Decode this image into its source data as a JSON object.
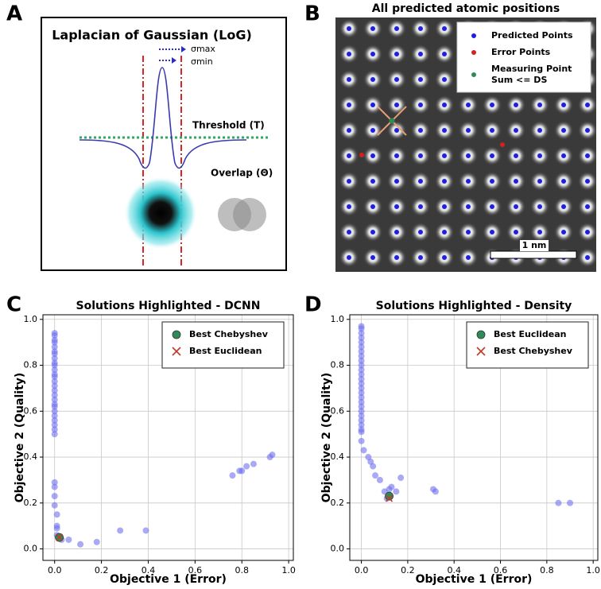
{
  "panels": {
    "a": {
      "letter": "A",
      "title": "Laplacian of Gaussian (LoG)",
      "sigma_max": "σmax",
      "sigma_min": "σmin",
      "threshold": "Threshold (T)",
      "overlap": "Overlap (Θ)"
    },
    "b": {
      "letter": "B",
      "title": "All predicted atomic positions",
      "scale_bar": "1 nm",
      "legend": [
        {
          "lines": [
            "Predicted Points"
          ],
          "color": "#1f1fe0"
        },
        {
          "lines": [
            "Error Points"
          ],
          "color": "#d62020"
        },
        {
          "lines": [
            "Measuring Point",
            "Sum <= DS"
          ],
          "color": "#2e8b57"
        }
      ]
    },
    "c": {
      "letter": "C"
    },
    "d": {
      "letter": "D"
    }
  },
  "chart_data": [
    {
      "type": "scatter",
      "title": "Solutions Highlighted - DCNN",
      "x_label": "Objective 1 (Error)",
      "y_label": "Objective 2 (Quality)",
      "xlim": [
        -0.05,
        1.02
      ],
      "ylim": [
        -0.05,
        1.02
      ],
      "xticks": [
        {
          "value": 0,
          "label": "0.0"
        },
        0.2,
        0.4,
        0.6,
        0.8,
        {
          "value": 1,
          "label": "1.0"
        }
      ],
      "yticks": [
        {
          "value": 0,
          "label": "0.0"
        },
        0.2,
        0.4,
        0.6,
        0.8,
        {
          "value": 1,
          "label": "1.0"
        }
      ],
      "grid": true,
      "legend": "upper right",
      "color": "#6f6ff0",
      "x": [
        0,
        0,
        0,
        0,
        0,
        0,
        0,
        0,
        0,
        0,
        0,
        0,
        0,
        0,
        0,
        0,
        0,
        0,
        0,
        0,
        0,
        0,
        0,
        0,
        0,
        0,
        0,
        0,
        0,
        0,
        0.01,
        0.01,
        0.01,
        0.01,
        0.02,
        0.03,
        0.06,
        0.11,
        0.18,
        0.28,
        0.39,
        0.76,
        0.79,
        0.8,
        0.82,
        0.85,
        0.92,
        0.93
      ],
      "y": [
        0.94,
        0.93,
        0.91,
        0.9,
        0.88,
        0.86,
        0.85,
        0.83,
        0.81,
        0.8,
        0.78,
        0.76,
        0.75,
        0.73,
        0.71,
        0.69,
        0.67,
        0.65,
        0.63,
        0.62,
        0.6,
        0.58,
        0.56,
        0.54,
        0.52,
        0.5,
        0.29,
        0.27,
        0.23,
        0.19,
        0.15,
        0.1,
        0.09,
        0.06,
        0.05,
        0.04,
        0.04,
        0.02,
        0.03,
        0.08,
        0.08,
        0.32,
        0.34,
        0.34,
        0.36,
        0.37,
        0.4,
        0.41
      ],
      "highlights": [
        {
          "name": "Best Chebyshev",
          "x": 0.02,
          "y": 0.05,
          "marker": "circle",
          "color": "#2e8b57"
        },
        {
          "name": "Best Euclidean",
          "x": 0.02,
          "y": 0.05,
          "marker": "x",
          "color": "#c0392b"
        }
      ]
    },
    {
      "type": "scatter",
      "title": "Solutions Highlighted - Density",
      "x_label": "Objective 1 (Error)",
      "y_label": "Objective 2 (Quality)",
      "xlim": [
        -0.05,
        1.02
      ],
      "ylim": [
        -0.05,
        1.02
      ],
      "xticks": [
        {
          "value": 0,
          "label": "0.0"
        },
        0.2,
        0.4,
        0.6,
        0.8,
        {
          "value": 1,
          "label": "1.0"
        }
      ],
      "yticks": [
        {
          "value": 0,
          "label": "0.0"
        },
        0.2,
        0.4,
        0.6,
        0.8,
        {
          "value": 1,
          "label": "1.0"
        }
      ],
      "grid": true,
      "legend": "upper right",
      "color": "#6f6ff0",
      "x": [
        0,
        0,
        0,
        0,
        0,
        0,
        0,
        0,
        0,
        0,
        0,
        0,
        0,
        0,
        0,
        0,
        0,
        0,
        0,
        0,
        0,
        0,
        0,
        0,
        0,
        0,
        0.01,
        0.03,
        0.04,
        0.05,
        0.06,
        0.08,
        0.1,
        0.11,
        0.12,
        0.13,
        0.15,
        0.17,
        0.31,
        0.32,
        0.85,
        0.9
      ],
      "y": [
        0.97,
        0.96,
        0.94,
        0.92,
        0.9,
        0.88,
        0.86,
        0.84,
        0.82,
        0.8,
        0.78,
        0.76,
        0.74,
        0.72,
        0.7,
        0.68,
        0.66,
        0.64,
        0.62,
        0.6,
        0.58,
        0.56,
        0.54,
        0.52,
        0.51,
        0.47,
        0.43,
        0.4,
        0.38,
        0.36,
        0.32,
        0.3,
        0.25,
        0.22,
        0.26,
        0.27,
        0.25,
        0.31,
        0.26,
        0.25,
        0.2,
        0.2
      ],
      "highlights": [
        {
          "name": "Best Euclidean",
          "x": 0.12,
          "y": 0.23,
          "marker": "circle",
          "color": "#2e8b57"
        },
        {
          "name": "Best Chebyshev",
          "x": 0.12,
          "y": 0.22,
          "marker": "x",
          "color": "#c0392b"
        }
      ]
    }
  ]
}
